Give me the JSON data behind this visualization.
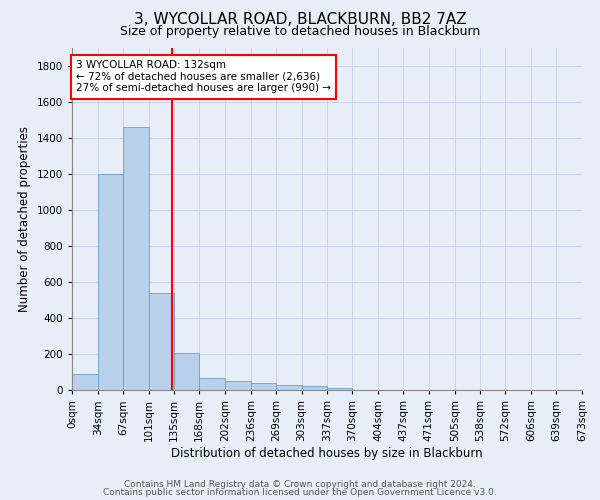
{
  "title": "3, WYCOLLAR ROAD, BLACKBURN, BB2 7AZ",
  "subtitle": "Size of property relative to detached houses in Blackburn",
  "xlabel": "Distribution of detached houses by size in Blackburn",
  "ylabel": "Number of detached properties",
  "bar_edges": [
    0,
    34,
    67,
    101,
    135,
    168,
    202,
    236,
    269,
    303,
    337,
    370,
    404,
    437,
    471,
    505,
    538,
    572,
    606,
    639,
    673
  ],
  "bar_heights": [
    90,
    1200,
    1460,
    540,
    205,
    65,
    48,
    40,
    30,
    20,
    10,
    0,
    0,
    0,
    0,
    0,
    0,
    0,
    0,
    0
  ],
  "bar_color": "#b8d0ea",
  "bar_edge_color": "#6a9fc8",
  "property_line_x": 132,
  "property_line_color": "red",
  "annotation_text": "3 WYCOLLAR ROAD: 132sqm\n← 72% of detached houses are smaller (2,636)\n27% of semi-detached houses are larger (990) →",
  "annotation_box_color": "white",
  "annotation_box_edge_color": "red",
  "ylim": [
    0,
    1900
  ],
  "yticks": [
    0,
    200,
    400,
    600,
    800,
    1000,
    1200,
    1400,
    1600,
    1800
  ],
  "tick_labels": [
    "0sqm",
    "34sqm",
    "67sqm",
    "101sqm",
    "135sqm",
    "168sqm",
    "202sqm",
    "236sqm",
    "269sqm",
    "303sqm",
    "337sqm",
    "370sqm",
    "404sqm",
    "437sqm",
    "471sqm",
    "505sqm",
    "538sqm",
    "572sqm",
    "606sqm",
    "639sqm",
    "673sqm"
  ],
  "footer_line1": "Contains HM Land Registry data © Crown copyright and database right 2024.",
  "footer_line2": "Contains public sector information licensed under the Open Government Licence v3.0.",
  "background_color": "#e8eef8",
  "grid_color": "#c8d4e8",
  "title_fontsize": 11,
  "subtitle_fontsize": 9,
  "axis_label_fontsize": 8.5,
  "tick_fontsize": 7.5,
  "footer_fontsize": 6.5
}
